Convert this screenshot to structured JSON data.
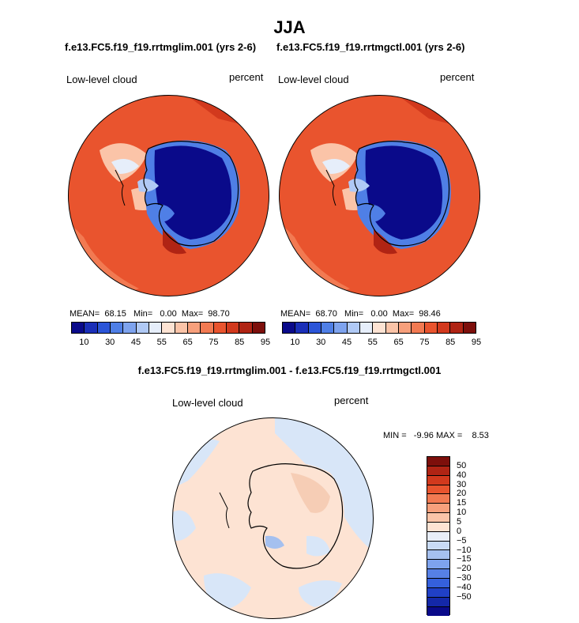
{
  "title": "JJA",
  "panel_left": {
    "subtitle": "f.e13.FC5.f19_f19.rrtmglim.001 (yrs 2-6)",
    "variable": "Low-level cloud",
    "units": "percent",
    "mean_label": "MEAN=",
    "mean_value": "68.15",
    "min_label": "Min=",
    "min_value": "0.00",
    "max_label": "Max=",
    "max_value": "98.70"
  },
  "panel_right": {
    "subtitle": "f.e13.FC5.f19_f19.rrtmgctl.001 (yrs 2-6)",
    "variable": "Low-level cloud",
    "units": "percent",
    "mean_label": "MEAN=",
    "mean_value": "68.70",
    "min_label": "Min=",
    "min_value": "0.00",
    "max_label": "Max=",
    "max_value": "98.46"
  },
  "panel_diff": {
    "subtitle": "f.e13.FC5.f19_f19.rrtmglim.001 - f.e13.FC5.f19_f19.rrtmgctl.001",
    "variable": "Low-level cloud",
    "units": "percent",
    "minmax_text": "MIN =   -9.96 MAX =    8.53"
  },
  "colorbar_abs": {
    "colors": [
      "#0a0a8a",
      "#1a2fb8",
      "#2b55d8",
      "#4f7fe6",
      "#7ea3ee",
      "#b0c9f5",
      "#e6eefa",
      "#fde3d3",
      "#fbc4a8",
      "#f7a07c",
      "#f27a52",
      "#e9542e",
      "#d2391d",
      "#b02414",
      "#7d0f0b"
    ],
    "tick_labels": [
      "10",
      "30",
      "45",
      "55",
      "65",
      "75",
      "85",
      "95"
    ]
  },
  "colorbar_diff": {
    "colors": [
      "#7d0f0b",
      "#b02414",
      "#d2391d",
      "#e9542e",
      "#f27a52",
      "#f7a07c",
      "#fbc4a8",
      "#fde3d3",
      "#e8eef8",
      "#c9dbf5",
      "#a5c0ef",
      "#7ea3ee",
      "#5680e6",
      "#3560dc",
      "#2040c6",
      "#1428a8",
      "#0a0a8a"
    ],
    "tick_labels": [
      "50",
      "40",
      "30",
      "20",
      "15",
      "10",
      "5",
      "0",
      "−5",
      "−10",
      "−15",
      "−20",
      "−30",
      "−40",
      "−50"
    ]
  }
}
